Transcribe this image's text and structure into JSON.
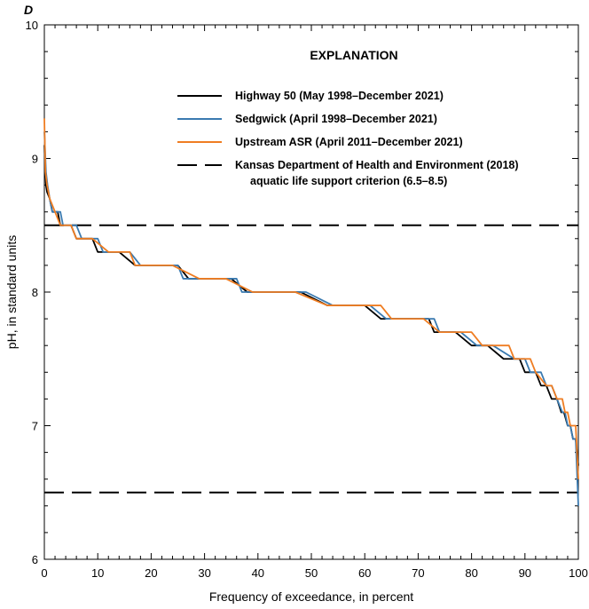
{
  "chart_data": {
    "type": "line",
    "panel_label": "D",
    "title": "",
    "xlabel": "Frequency of exceedance, in percent",
    "ylabel": "pH, in standard units",
    "xlim": [
      0,
      100
    ],
    "ylim": [
      6,
      10
    ],
    "x_ticks": [
      0,
      10,
      20,
      30,
      40,
      50,
      60,
      70,
      80,
      90,
      100
    ],
    "y_ticks": [
      6,
      7,
      8,
      9,
      10
    ],
    "legend_title": "EXPLANATION",
    "legend_position": "top-right",
    "series": [
      {
        "name": "Highway 50 (May 1998–December 2021)",
        "color": "#000000",
        "style": "solid",
        "x": [
          0,
          0.3,
          0.5,
          1,
          1.5,
          2.5,
          3,
          5,
          6,
          9,
          10,
          13,
          14,
          17,
          18,
          25,
          27,
          35,
          38,
          40,
          48,
          53,
          60,
          63,
          64,
          72,
          73,
          77,
          80,
          83,
          86,
          89,
          90,
          92,
          93,
          94,
          95,
          96,
          96.8,
          97.3,
          98,
          98.5,
          99,
          99.5,
          100
        ],
        "y": [
          9.1,
          8.8,
          8.75,
          8.7,
          8.6,
          8.6,
          8.5,
          8.5,
          8.4,
          8.4,
          8.3,
          8.3,
          8.3,
          8.2,
          8.2,
          8.2,
          8.1,
          8.1,
          8.0,
          8.0,
          8.0,
          7.9,
          7.9,
          7.8,
          7.8,
          7.8,
          7.7,
          7.7,
          7.6,
          7.6,
          7.5,
          7.5,
          7.4,
          7.4,
          7.3,
          7.3,
          7.2,
          7.2,
          7.1,
          7.1,
          7.0,
          7.0,
          6.9,
          6.9,
          6.7
        ]
      },
      {
        "name": "Sedgwick (April 1998–December 2021)",
        "color": "#3a7ab0",
        "style": "solid",
        "x": [
          0,
          0.3,
          0.6,
          1,
          1.5,
          3,
          3.5,
          6,
          7,
          10,
          11,
          15,
          16,
          18,
          19,
          25,
          26,
          36,
          37,
          40,
          49,
          54,
          61,
          64,
          65,
          73,
          74,
          78,
          81,
          84,
          88,
          90,
          91,
          93,
          94,
          95,
          96,
          97,
          97.5,
          98,
          98.5,
          99,
          99.5,
          100
        ],
        "y": [
          9.2,
          8.9,
          8.8,
          8.7,
          8.6,
          8.6,
          8.5,
          8.5,
          8.4,
          8.4,
          8.3,
          8.3,
          8.3,
          8.2,
          8.2,
          8.2,
          8.1,
          8.1,
          8.0,
          8.0,
          8.0,
          7.9,
          7.9,
          7.8,
          7.8,
          7.8,
          7.7,
          7.7,
          7.6,
          7.6,
          7.5,
          7.5,
          7.4,
          7.4,
          7.3,
          7.3,
          7.2,
          7.1,
          7.1,
          7.0,
          7.0,
          6.9,
          6.9,
          6.4
        ]
      },
      {
        "name": "Upstream ASR (April 2011–December 2021)",
        "color": "#ef7d22",
        "style": "solid",
        "x": [
          0,
          0.2,
          0.5,
          1,
          2,
          3,
          4,
          5,
          6,
          8,
          9,
          12,
          14,
          16,
          17,
          22,
          24,
          29,
          34,
          39,
          47,
          53,
          61,
          63,
          65,
          71,
          74,
          80,
          82,
          87,
          88,
          91,
          92,
          94,
          95,
          96,
          97,
          97.5,
          98,
          98.5,
          99,
          99.5,
          100
        ],
        "y": [
          9.3,
          8.9,
          8.8,
          8.7,
          8.6,
          8.5,
          8.5,
          8.5,
          8.4,
          8.4,
          8.4,
          8.3,
          8.3,
          8.3,
          8.2,
          8.2,
          8.2,
          8.1,
          8.1,
          8.0,
          8.0,
          7.9,
          7.9,
          7.9,
          7.8,
          7.8,
          7.7,
          7.7,
          7.6,
          7.6,
          7.5,
          7.5,
          7.4,
          7.3,
          7.3,
          7.2,
          7.2,
          7.1,
          7.1,
          7.0,
          7.0,
          7.0,
          6.6
        ]
      },
      {
        "name": "Kansas Department of Health and Environment (2018)",
        "name_line2": "aquatic life support criterion (6.5–8.5)",
        "color": "#000000",
        "style": "dashed",
        "reference_values": [
          8.5,
          6.5
        ]
      }
    ]
  }
}
